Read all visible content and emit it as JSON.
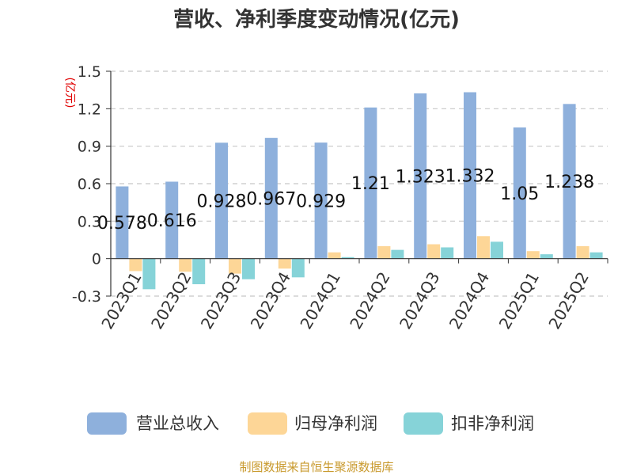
{
  "chart_data": {
    "type": "bar",
    "title": "营收、净利季度变动情况(亿元)",
    "unit_label": "(亿元)",
    "categories": [
      "2023Q1",
      "2023Q2",
      "2023Q3",
      "2023Q4",
      "2024Q1",
      "2024Q2",
      "2024Q3",
      "2024Q4",
      "2025Q1",
      "2025Q2"
    ],
    "series": [
      {
        "name": "营业总收入",
        "color": "#8eb0dc",
        "values": [
          0.578,
          0.616,
          0.928,
          0.967,
          0.929,
          1.21,
          1.323,
          1.332,
          1.05,
          1.238
        ],
        "labels": [
          "0.578",
          "0.616",
          "0.928",
          "0.967",
          "0.929",
          "1.21",
          "1.323",
          "1.332",
          "1.05",
          "1.238"
        ]
      },
      {
        "name": "归母净利润",
        "color": "#fdd697",
        "values": [
          -0.1,
          -0.105,
          -0.12,
          -0.08,
          0.05,
          0.1,
          0.115,
          0.18,
          0.06,
          0.1
        ]
      },
      {
        "name": "扣非净利润",
        "color": "#86d3d8",
        "values": [
          -0.245,
          -0.205,
          -0.165,
          -0.15,
          0.012,
          0.07,
          0.09,
          0.135,
          0.035,
          0.05
        ]
      }
    ],
    "yticks": [
      "-0.3",
      "0",
      "0.3",
      "0.6",
      "0.9",
      "1.2",
      "1.5"
    ],
    "ylim": [
      -0.3,
      1.5
    ],
    "grid": true,
    "legend_position": "bottom",
    "source": "制图数据来自恒生聚源数据库"
  }
}
